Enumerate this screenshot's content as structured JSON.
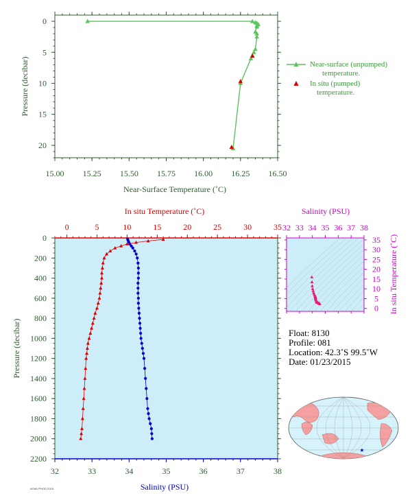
{
  "colors": {
    "axis_green": "#2e5a2e",
    "series_green": "#5cc45c",
    "insitu_red": "#dd0000",
    "salinity_blue": "#0000cc",
    "magenta": "#cc00cc",
    "panel_bg": "#cdeef8",
    "ts_points": "#e0207a",
    "map_ocean": "#d6f3fb",
    "map_land": "#f4a0a0",
    "map_marker": "#0000cc"
  },
  "chart_data": [
    {
      "id": "near-surface",
      "type": "line",
      "xlabel": "Near-Surface Temperature (˚C)",
      "ylabel": "Pressure (decibar)",
      "xlim": [
        15.0,
        16.5
      ],
      "ylim": [
        22,
        -1
      ],
      "xticks": [
        "15.00",
        "15.25",
        "15.50",
        "15.75",
        "16.00",
        "16.25",
        "16.50"
      ],
      "yticks": [
        "0",
        "5",
        "10",
        "15",
        "20"
      ],
      "series": [
        {
          "name": "Near-surface (unpumped) temperature.",
          "marker": "triangle",
          "x": [
            15.22,
            16.33,
            16.35,
            16.36,
            16.37,
            16.36,
            16.36,
            16.35,
            16.36,
            16.36,
            16.35,
            16.34,
            16.33,
            16.32,
            16.25,
            16.2
          ],
          "y": [
            0.0,
            0.0,
            0.2,
            0.3,
            0.5,
            0.7,
            0.9,
            1.7,
            2.0,
            2.5,
            4.5,
            5.0,
            5.5,
            6.0,
            10.0,
            20.5
          ]
        },
        {
          "name": "In situ (pumped) temperature.",
          "marker": "triangle",
          "x": [
            16.33,
            16.25,
            16.19
          ],
          "y": [
            5.6,
            9.7,
            20.3
          ]
        }
      ],
      "legend": "right"
    },
    {
      "id": "profile",
      "type": "line",
      "ylabel": "Pressure (decibar)",
      "ylim": [
        2200,
        0
      ],
      "yticks": [
        "0",
        "200",
        "400",
        "600",
        "800",
        "1000",
        "1200",
        "1400",
        "1600",
        "1800",
        "2000",
        "2200"
      ],
      "top_axis": {
        "label": "In situ Temperature (˚C)",
        "range": [
          -2,
          35
        ],
        "ticks": [
          "0",
          "5",
          "10",
          "15",
          "20",
          "25",
          "30",
          "35"
        ]
      },
      "bottom_axis": {
        "label": "Salinity (PSU)",
        "range": [
          32,
          38
        ],
        "ticks": [
          "32",
          "33",
          "34",
          "35",
          "36",
          "37",
          "38"
        ]
      },
      "series": [
        {
          "name": "In situ Temperature (˚C)",
          "marker": "triangle",
          "x": [
            16.0,
            13.5,
            11.5,
            10.0,
            9.0,
            8.0,
            7.2,
            6.6,
            6.2,
            6.0,
            5.9,
            5.8,
            5.8,
            5.7,
            5.6,
            5.5,
            5.4,
            5.2,
            5.0,
            4.7,
            4.5,
            4.3,
            4.1,
            3.9,
            3.7,
            3.5,
            3.4,
            3.3,
            3.2,
            3.1,
            3.0,
            2.9,
            2.8,
            2.7,
            2.6,
            2.5,
            2.4,
            2.3
          ],
          "y": [
            15,
            30,
            45,
            60,
            80,
            100,
            130,
            160,
            200,
            250,
            300,
            350,
            400,
            450,
            500,
            550,
            600,
            650,
            700,
            750,
            800,
            850,
            900,
            950,
            1000,
            1050,
            1100,
            1150,
            1200,
            1300,
            1400,
            1500,
            1600,
            1700,
            1800,
            1900,
            1950,
            2000
          ]
        },
        {
          "name": "Salinity (PSU)",
          "marker": "circle",
          "x": [
            33.96,
            33.97,
            33.99,
            34.02,
            34.06,
            34.1,
            34.15,
            34.19,
            34.22,
            34.24,
            34.25,
            34.25,
            34.25,
            34.24,
            34.24,
            34.24,
            34.25,
            34.25,
            34.26,
            34.27,
            34.28,
            34.29,
            34.3,
            34.31,
            34.32,
            34.34,
            34.36,
            34.38,
            34.4,
            34.42,
            34.44,
            34.46,
            34.48,
            34.5,
            34.52,
            34.54,
            34.57,
            34.6,
            34.61,
            34.62
          ],
          "y": [
            10,
            25,
            40,
            60,
            80,
            100,
            130,
            160,
            200,
            250,
            300,
            350,
            400,
            450,
            500,
            550,
            600,
            650,
            700,
            750,
            800,
            850,
            900,
            950,
            1000,
            1050,
            1100,
            1150,
            1200,
            1300,
            1400,
            1500,
            1600,
            1700,
            1750,
            1800,
            1850,
            1900,
            1950,
            2000
          ]
        }
      ]
    },
    {
      "id": "ts-diagram",
      "type": "scatter",
      "xlabel": "Salinity (PSU)",
      "ylabel": "In situ Temperature (˚C)",
      "xlim": [
        32,
        38
      ],
      "ylim": [
        -1.5,
        36
      ],
      "xticks": [
        "32",
        "33",
        "34",
        "35",
        "36",
        "37",
        "38"
      ],
      "yticks": [
        "0",
        "5",
        "10",
        "15",
        "20",
        "25",
        "30",
        "35"
      ],
      "x": [
        33.96,
        33.97,
        33.99,
        34.02,
        34.06,
        34.1,
        34.15,
        34.19,
        34.22,
        34.24,
        34.25,
        34.25,
        34.24,
        34.24,
        34.25,
        34.26,
        34.28,
        34.3,
        34.32,
        34.34,
        34.36,
        34.38,
        34.42,
        34.46,
        34.5,
        34.54,
        34.58
      ],
      "y": [
        16.0,
        13.5,
        11.5,
        10.0,
        9.0,
        8.0,
        7.2,
        6.6,
        6.2,
        6.0,
        5.8,
        5.7,
        5.6,
        5.4,
        5.0,
        4.7,
        4.3,
        3.9,
        3.5,
        3.3,
        3.1,
        3.0,
        2.9,
        2.8,
        2.6,
        2.5,
        2.3
      ]
    }
  ],
  "info": {
    "float": "Float: 8130",
    "profile": "Profile: 081",
    "location": "Location: 42.3˚S 99.5˚W",
    "date": "Date: 01/23/2015"
  }
}
